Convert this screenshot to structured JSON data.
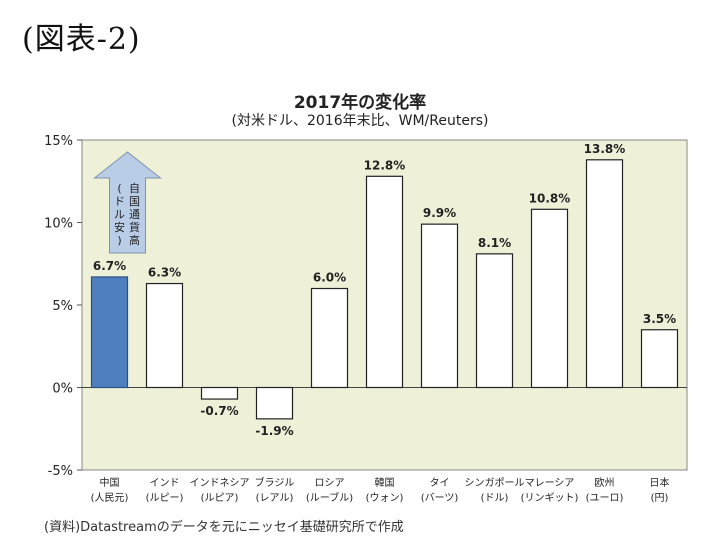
{
  "figure_label": "(図表-2)",
  "source_note": "(資料)Datastreamのデータを元にニッセイ基礎研究所で作成",
  "colors": {
    "plot_bg": "#eef1d8",
    "highlight_bar": "#4f7fbf",
    "bar": "#ffffff",
    "arrow": "#b9cde6"
  },
  "chart_data": {
    "type": "bar",
    "title": "2017年の変化率",
    "subtitle": "(対米ドル、2016年末比、WM/Reuters)",
    "xlabel": "",
    "ylabel": "",
    "ylim": [
      -5,
      15
    ],
    "yticks": [
      "15%",
      "10%",
      "5%",
      "0%",
      "-5%"
    ],
    "ytick_values": [
      15,
      10,
      5,
      0,
      -5
    ],
    "grid": false,
    "categories": [
      [
        "中国",
        "(人民元)"
      ],
      [
        "インド",
        "(ルピー)"
      ],
      [
        "インドネシア",
        "(ルピア)"
      ],
      [
        "ブラジル",
        "(レアル)"
      ],
      [
        "ロシア",
        "(ルーブル)"
      ],
      [
        "韓国",
        "(ウォン)"
      ],
      [
        "タイ",
        "(バーツ)"
      ],
      [
        "シンガポール",
        "(ドル)"
      ],
      [
        "マレーシア",
        "(リンギット)"
      ],
      [
        "欧州",
        "(ユーロ)"
      ],
      [
        "日本",
        "(円)"
      ]
    ],
    "values": [
      6.7,
      6.3,
      -0.7,
      -1.9,
      6.0,
      12.8,
      9.9,
      8.1,
      10.8,
      13.8,
      3.5
    ],
    "data_labels": [
      "6.7%",
      "6.3%",
      "-0.7%",
      "-1.9%",
      "6.0%",
      "12.8%",
      "9.9%",
      "8.1%",
      "10.8%",
      "13.8%",
      "3.5%"
    ],
    "highlight_index": 0,
    "annotation": {
      "text": "自国通貨高(ドル安)",
      "lines": [
        "自国通貨高",
        "(ドル安)"
      ]
    }
  }
}
